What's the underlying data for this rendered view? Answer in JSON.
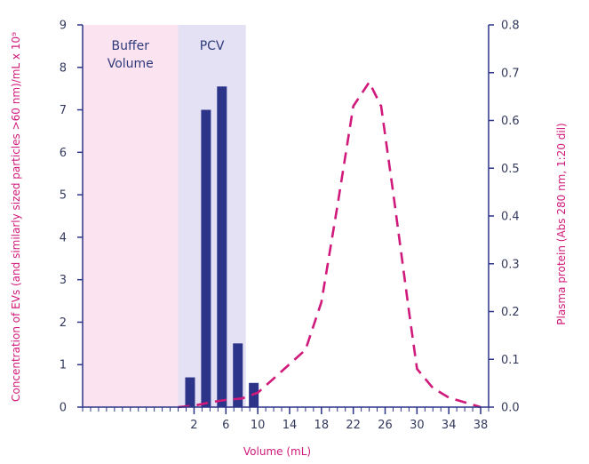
{
  "chart_data": {
    "type": "bar",
    "x_axis": {
      "label": "Volume (mL)",
      "range": [
        -12,
        39
      ],
      "ticks": [
        "2",
        "6",
        "10",
        "14",
        "18",
        "22",
        "26",
        "30",
        "34",
        "38"
      ],
      "tick_values": [
        2,
        6,
        10,
        14,
        18,
        22,
        26,
        30,
        34,
        38
      ]
    },
    "y_left": {
      "label": "Concentration of EVs (and similarly sized particles >60 nm)/mL x 10⁹",
      "range": [
        0,
        9
      ],
      "ticks": [
        "0",
        "1",
        "2",
        "3",
        "4",
        "5",
        "6",
        "7",
        "8",
        "9"
      ]
    },
    "y_right": {
      "label": "Plasma protein (Abs 280 nm, 1:20 dil)",
      "range": [
        0,
        0.8
      ],
      "ticks": [
        "0.0",
        "0.1",
        "0.2",
        "0.3",
        "0.4",
        "0.5",
        "0.6",
        "0.7",
        "0.8"
      ]
    },
    "regions": [
      {
        "name": "buffer-volume",
        "label_lines": [
          "Buffer",
          "Volume"
        ],
        "x_start": -12,
        "x_end": 0,
        "color": "#fbe3f0"
      },
      {
        "name": "pcv",
        "label_lines": [
          "PCV"
        ],
        "x_start": 0,
        "x_end": 8.5,
        "color": "#e3e1f3"
      }
    ],
    "series": [
      {
        "name": "EV concentration",
        "type": "bar",
        "axis": "left",
        "color": "#2b3488",
        "bars": [
          {
            "x": 1.5,
            "value": 0.7
          },
          {
            "x": 3.5,
            "value": 7.0
          },
          {
            "x": 5.5,
            "value": 7.55
          },
          {
            "x": 7.5,
            "value": 1.5
          },
          {
            "x": 9.5,
            "value": 0.57
          }
        ]
      },
      {
        "name": "Plasma protein",
        "type": "line",
        "style": "dashed",
        "axis": "right",
        "color": "#d0197a",
        "points": [
          {
            "x": 0,
            "y": 0.0
          },
          {
            "x": 2,
            "y": 0.003
          },
          {
            "x": 4,
            "y": 0.01
          },
          {
            "x": 6,
            "y": 0.015
          },
          {
            "x": 8,
            "y": 0.018
          },
          {
            "x": 10,
            "y": 0.03
          },
          {
            "x": 12,
            "y": 0.06
          },
          {
            "x": 14,
            "y": 0.09
          },
          {
            "x": 16,
            "y": 0.12
          },
          {
            "x": 18,
            "y": 0.22
          },
          {
            "x": 20,
            "y": 0.42
          },
          {
            "x": 22,
            "y": 0.63
          },
          {
            "x": 24,
            "y": 0.68
          },
          {
            "x": 25.5,
            "y": 0.63
          },
          {
            "x": 27,
            "y": 0.45
          },
          {
            "x": 29,
            "y": 0.2
          },
          {
            "x": 30,
            "y": 0.08
          },
          {
            "x": 32,
            "y": 0.04
          },
          {
            "x": 34,
            "y": 0.02
          },
          {
            "x": 36,
            "y": 0.01
          },
          {
            "x": 38,
            "y": 0.0
          }
        ]
      }
    ]
  }
}
